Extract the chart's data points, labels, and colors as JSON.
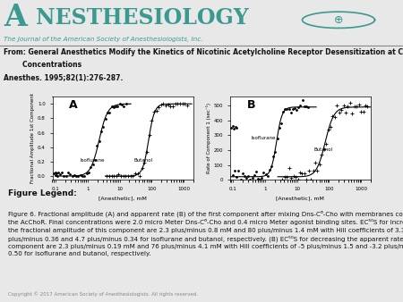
{
  "bg_color": "#e8e8e8",
  "journal_title_A": "A",
  "journal_title_rest": "NESTHESIOLOGY",
  "journal_subtitle": "The Journal of the American Society of Anesthesiologists, Inc.",
  "from_line1": "From: General Anesthetics Modify the Kinetics of Nicotinic Acetylcholine Receptor Desensitization at Clinically Relevant",
  "from_line2": "        Concentrations",
  "citation": "Anesthes. 1995;82(1):276-287.",
  "figure_legend_title": "Figure Legend:",
  "figure_legend_line1": "Figure 6. Fractional amplitude (A) and apparent rate (B) of the first component after mixing Dns-C⁶-Cho with membranes containing",
  "figure_legend_line2": "the AcChoR. Final concentrations were 2.0 micro Meter Dns-C⁶-Cho and 0.4 micro Meter agonist binding sites. EC⁵⁰S for increasing",
  "figure_legend_line3": "the fractional amplitude of this component are 2.3 plus/minus 0.8 mM and 80 plus/minus 1.4 mM with Hill coefficients of 3.3",
  "figure_legend_line4": "plus/minus 0.36 and 4.7 plus/minus 0.34 for isoflurane and butanol, respectively. (B) EC⁵⁰S for decreasing the apparent rate of this",
  "figure_legend_line5": "component are 2.3 plus/minus 0.19 mM and 76 plus/minus 4.1 mM with Hill coefficients of -5 plus/minus 1.5 and -3.2 plus/minus",
  "figure_legend_line6": "0.50 for isoflurane and butanol, respectively.",
  "copyright": "Copyright © 2017 American Society of Anesthesiologists. All rights reserved.",
  "teal_color": "#3a9a8f",
  "label_A": "A",
  "label_B": "B",
  "xlabel": "[Anesthetic], mM",
  "ylabel_A": "Fractional Amplitude 1st Component",
  "ylabel_B": "Rate of Component 1 (sec⁻¹)",
  "label_isoflurane": "Isoflurane",
  "label_butanol": "Butanol"
}
